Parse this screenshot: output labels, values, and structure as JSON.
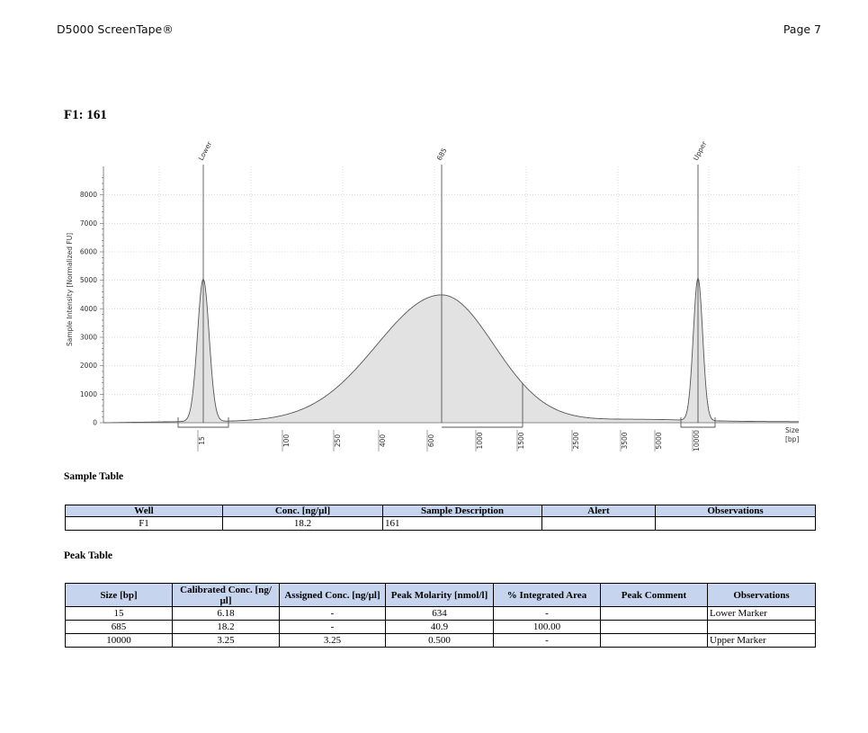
{
  "header": {
    "title": "D5000 ScreenTape®",
    "page": "Page 7"
  },
  "sample_heading": "F1: 161",
  "chart_data": {
    "type": "area",
    "ylabel": "Sample Intensity [Normalized FU]",
    "xlabel": "Size\n[bp]",
    "xlabel_lines": [
      "Size",
      "[bp]"
    ],
    "y_ticks": [
      0,
      1000,
      2000,
      3000,
      4000,
      5000,
      6000,
      7000,
      8000
    ],
    "ylim": [
      0,
      9000
    ],
    "x_ticks": [
      "15",
      "100",
      "250",
      "400",
      "600",
      "1000",
      "1500",
      "2500",
      "3500",
      "5000",
      "10000"
    ],
    "peak_labels": [
      "Lower",
      "685",
      "Upper"
    ],
    "peaks": [
      {
        "label": "Lower",
        "size_bp": 15,
        "intensity": 5000
      },
      {
        "label": "685",
        "size_bp": 685,
        "intensity": 4450
      },
      {
        "label": "Upper",
        "size_bp": 10000,
        "intensity": 5000
      }
    ],
    "region": {
      "from_bp": 685,
      "to_bp": 1500
    },
    "grid": true
  },
  "sample_table": {
    "title": "Sample Table",
    "headers": [
      "Well",
      "Conc. [ng/µl]",
      "Sample Description",
      "Alert",
      "Observations"
    ],
    "rows": [
      [
        "F1",
        "18.2",
        "161",
        "",
        ""
      ]
    ]
  },
  "peak_table": {
    "title": "Peak Table",
    "headers": [
      "Size [bp]",
      "Calibrated Conc. [ng/µl]",
      "Assigned Conc. [ng/µl]",
      "Peak Molarity [nmol/l]",
      "% Integrated Area",
      "Peak Comment",
      "Observations"
    ],
    "rows": [
      [
        "15",
        "6.18",
        "-",
        "634",
        "-",
        "",
        "Lower Marker"
      ],
      [
        "685",
        "18.2",
        "-",
        "40.9",
        "100.00",
        "",
        ""
      ],
      [
        "10000",
        "3.25",
        "3.25",
        "0.500",
        "-",
        "",
        "Upper Marker"
      ]
    ]
  }
}
